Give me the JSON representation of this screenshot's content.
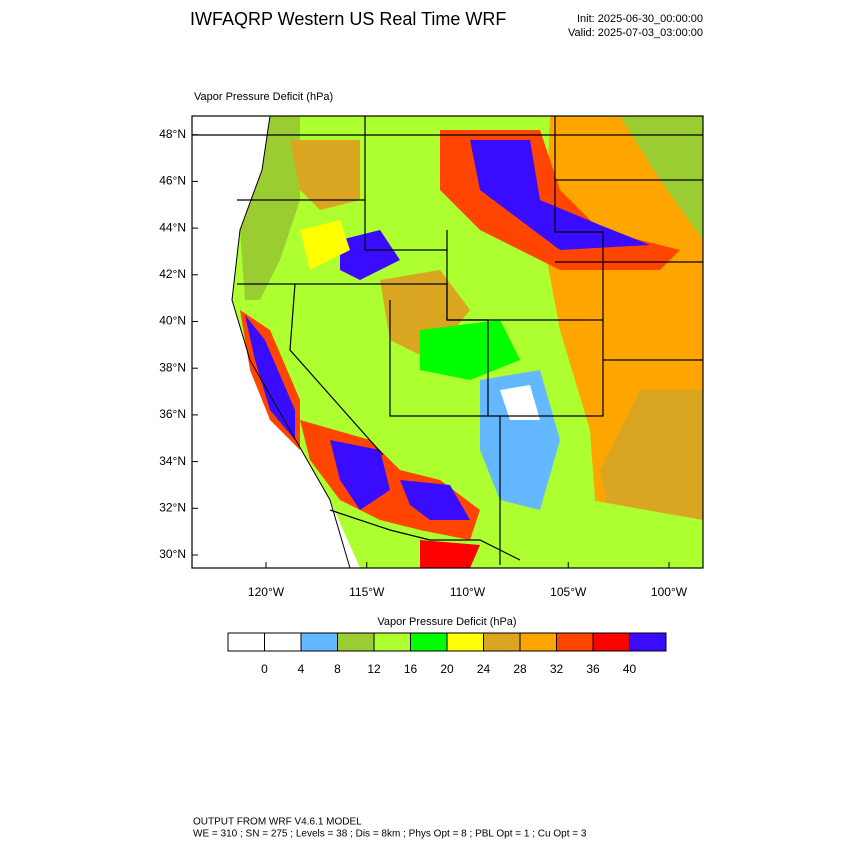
{
  "header": {
    "title": "IWFAQRP Western US Real Time WRF",
    "init": "Init: 2025-06-30_00:00:00",
    "valid": "Valid: 2025-07-03_03:00:00"
  },
  "map": {
    "subtitle": "Vapor Pressure Deficit   (hPa)",
    "lat_labels": [
      "30°N",
      "32°N",
      "34°N",
      "36°N",
      "38°N",
      "40°N",
      "42°N",
      "44°N",
      "46°N",
      "48°N"
    ],
    "lon_labels": [
      "120°W",
      "115°W",
      "110°W",
      "105°W",
      "100°W"
    ]
  },
  "colorbar": {
    "title": "Vapor Pressure Deficit  (hPa)",
    "colors": [
      "#ffffff",
      "#ffffff",
      "#63b8ff",
      "#9acd32",
      "#adff2f",
      "#00ff00",
      "#ffff00",
      "#daa520",
      "#ffa500",
      "#ff4500",
      "#ff0000",
      "#3a0cff"
    ],
    "labels": [
      0,
      4,
      8,
      12,
      16,
      20,
      24,
      28,
      32,
      36,
      40
    ]
  },
  "footer": {
    "line1": "OUTPUT FROM WRF V4.6.1 MODEL",
    "line2": "WE = 310 ; SN = 275 ; Levels = 38 ; Dis = 8km ; Phys Opt = 8 ; PBL Opt = 1 ; Cu Opt = 3"
  }
}
